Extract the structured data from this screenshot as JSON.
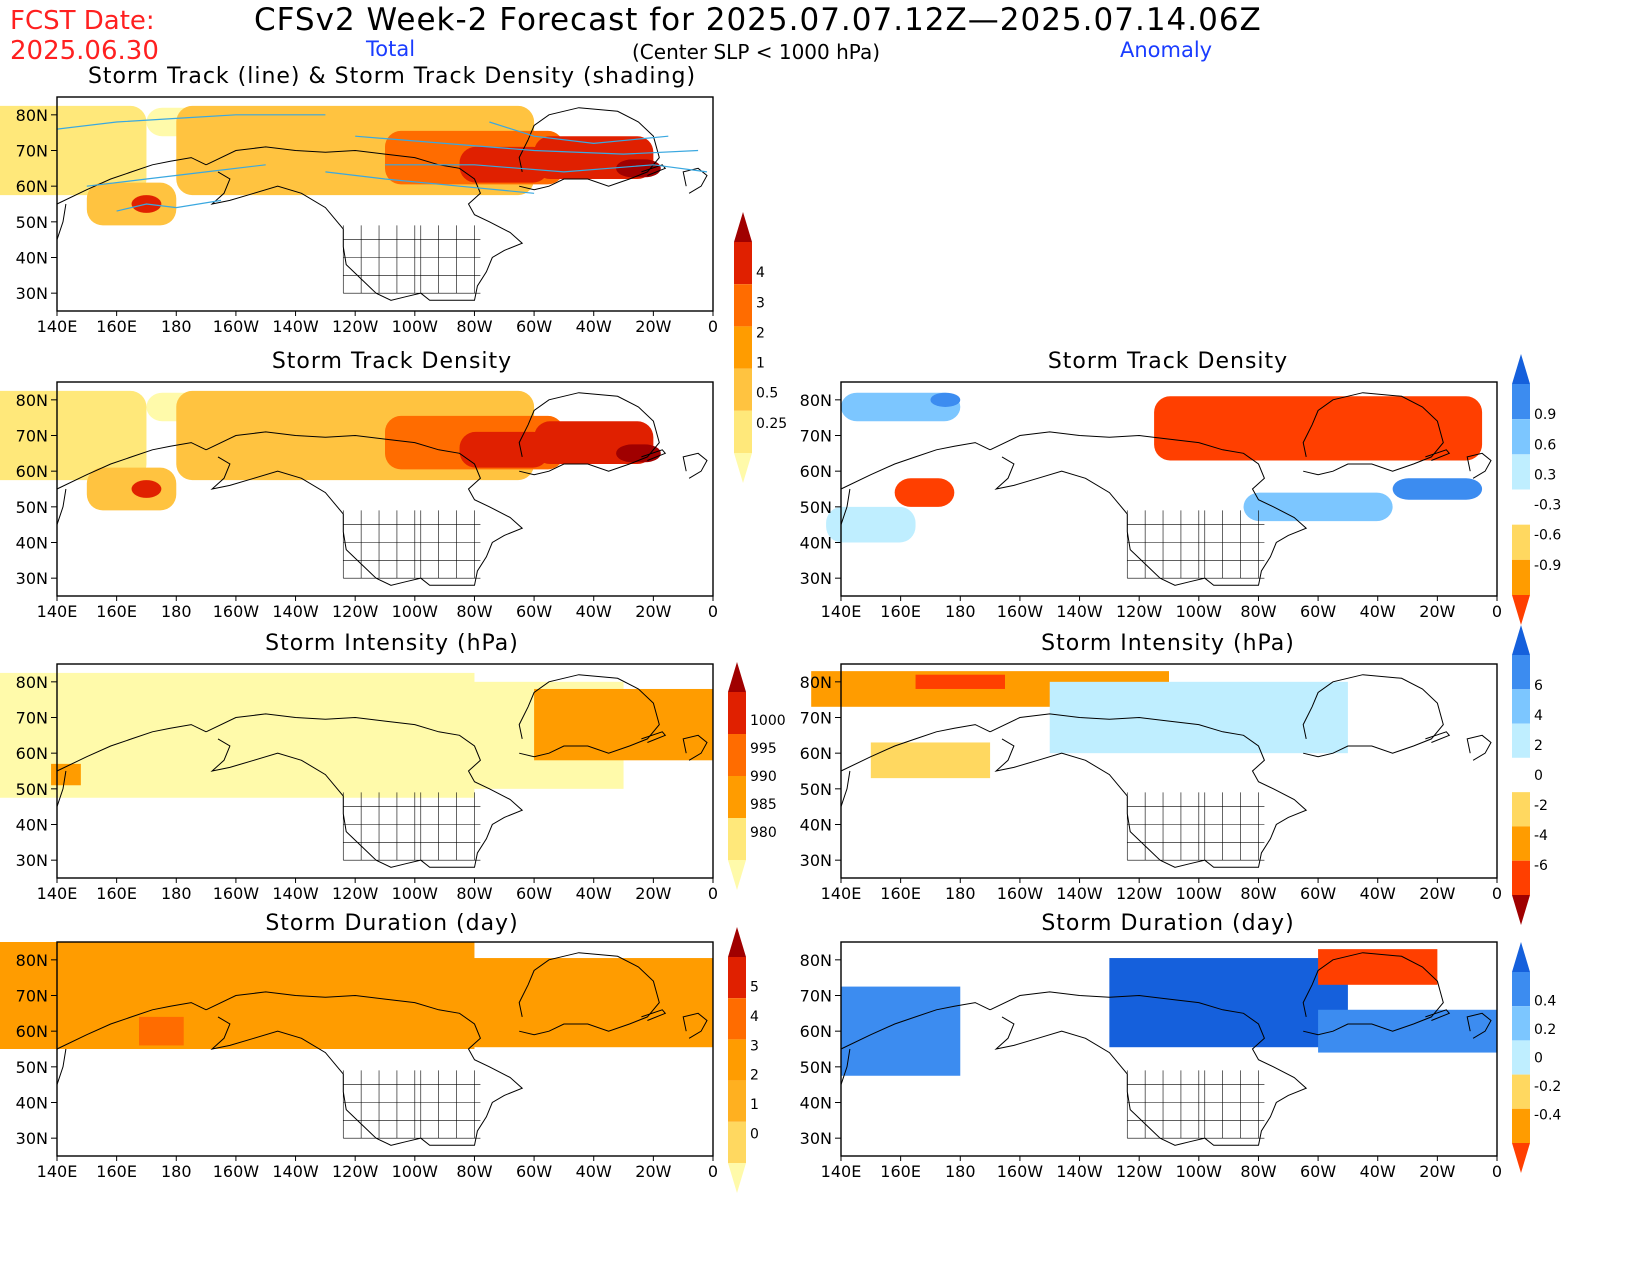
{
  "header": {
    "fcst_label": "FCST Date:",
    "fcst_date": "2025.06.30",
    "title": "CFSv2 Week-2 Forecast for 2025.07.07.12Z—2025.07.14.06Z",
    "total_label": "Total",
    "criterion": "(Center SLP < 1000 hPa)",
    "anomaly_label": "Anomaly"
  },
  "axes": {
    "lon_labels": [
      "140E",
      "160E",
      "180",
      "160W",
      "140W",
      "120W",
      "100W",
      "80W",
      "60W",
      "40W",
      "20W",
      "0"
    ],
    "lat_labels": [
      "80N",
      "70N",
      "60N",
      "50N",
      "40N",
      "30N"
    ]
  },
  "panels": [
    {
      "id": "track-total",
      "title": "Storm Track (line) & Storm Track Density (shading)",
      "field": "track_density_total"
    },
    {
      "id": "density-total",
      "title": "Storm Track Density",
      "field": "track_density_total"
    },
    {
      "id": "density-anomaly",
      "title": "Storm Track Density",
      "field": "track_density_anomaly"
    },
    {
      "id": "intensity-total",
      "title": "Storm Intensity (hPa)",
      "field": "intensity_total"
    },
    {
      "id": "intensity-anomaly",
      "title": "Storm Intensity (hPa)",
      "field": "intensity_anomaly"
    },
    {
      "id": "duration-total",
      "title": "Storm Duration (day)",
      "field": "duration_total"
    },
    {
      "id": "duration-anomaly",
      "title": "Storm Duration (day)",
      "field": "duration_anomaly"
    }
  ],
  "colorbars": [
    {
      "id": "cb-density-total",
      "labels": [
        "4",
        "3",
        "2",
        "1",
        "0.5",
        "0.25"
      ],
      "colors": [
        "#fffaaa",
        "#ffe87a",
        "#ffc340",
        "#ff9c00",
        "#ff6c00",
        "#e02000",
        "#a00000"
      ]
    },
    {
      "id": "cb-density-anom",
      "labels": [
        "0.9",
        "0.6",
        "0.3",
        "-0.3",
        "-0.6",
        "-0.9"
      ],
      "colors": [
        "#ff3f00",
        "#ff9c00",
        "#ffd860",
        "#ffffff",
        "#bfeeff",
        "#7cc6ff",
        "#3c8cf0",
        "#1560dc"
      ]
    },
    {
      "id": "cb-int-total",
      "labels": [
        "1000",
        "995",
        "990",
        "985",
        "980"
      ],
      "colors": [
        "#fffaaa",
        "#ffe87a",
        "#ff9c00",
        "#ff6c00",
        "#e02000",
        "#a00000"
      ]
    },
    {
      "id": "cb-int-anom",
      "labels": [
        "6",
        "4",
        "2",
        "0",
        "-2",
        "-4",
        "-6"
      ],
      "colors": [
        "#a00000",
        "#ff3f00",
        "#ff9c00",
        "#ffd860",
        "#ffffff",
        "#bfeeff",
        "#7cc6ff",
        "#3c8cf0",
        "#1560dc"
      ]
    },
    {
      "id": "cb-dur-total",
      "labels": [
        "5",
        "4",
        "3",
        "2",
        "1",
        "0"
      ],
      "colors": [
        "#fffaaa",
        "#ffd860",
        "#ffb020",
        "#ff9c00",
        "#ff6c00",
        "#e02000",
        "#a00000"
      ]
    },
    {
      "id": "cb-dur-anom",
      "labels": [
        "0.4",
        "0.2",
        "0",
        "-0.2",
        "-0.4"
      ],
      "colors": [
        "#ff3f00",
        "#ff9c00",
        "#ffd860",
        "#bfeeff",
        "#7cc6ff",
        "#3c8cf0",
        "#1560dc"
      ]
    }
  ],
  "fields": {
    "track_density_total": [
      {
        "lon": 140,
        "lat": 70,
        "w": 60,
        "h": 25,
        "c": "#ffe87a"
      },
      {
        "lon": 165,
        "lat": 55,
        "w": 30,
        "h": 12,
        "c": "#ffc340"
      },
      {
        "lon": 170,
        "lat": 55,
        "w": 10,
        "h": 5,
        "c": "#e02000"
      },
      {
        "lon": 200,
        "lat": 78,
        "w": 60,
        "h": 8,
        "c": "#fffaaa"
      },
      {
        "lon": 240,
        "lat": 70,
        "w": 120,
        "h": 25,
        "c": "#ffc340"
      },
      {
        "lon": 280,
        "lat": 68,
        "w": 60,
        "h": 15,
        "c": "#ff6c00"
      },
      {
        "lon": 290,
        "lat": 66,
        "w": 30,
        "h": 10,
        "c": "#e02000"
      },
      {
        "lon": 320,
        "lat": 68,
        "w": 40,
        "h": 12,
        "c": "#e02000"
      },
      {
        "lon": 335,
        "lat": 65,
        "w": 15,
        "h": 5,
        "c": "#a00000"
      }
    ],
    "track_density_anomaly": [
      {
        "lon": 160,
        "lat": 78,
        "w": 40,
        "h": 8,
        "c": "#7cc6ff"
      },
      {
        "lon": 175,
        "lat": 80,
        "w": 10,
        "h": 4,
        "c": "#3c8cf0"
      },
      {
        "lon": 168,
        "lat": 54,
        "w": 20,
        "h": 8,
        "c": "#ff3f00"
      },
      {
        "lon": 150,
        "lat": 45,
        "w": 30,
        "h": 10,
        "c": "#bfeeff"
      },
      {
        "lon": 300,
        "lat": 72,
        "w": 110,
        "h": 18,
        "c": "#ff3f00"
      },
      {
        "lon": 300,
        "lat": 50,
        "w": 50,
        "h": 8,
        "c": "#7cc6ff"
      },
      {
        "lon": 340,
        "lat": 55,
        "w": 30,
        "h": 6,
        "c": "#3c8cf0"
      }
    ],
    "intensity_total": [
      {
        "lon": 200,
        "lat": 65,
        "w": 160,
        "h": 35,
        "c": "#fffaaa"
      },
      {
        "lon": 290,
        "lat": 65,
        "w": 80,
        "h": 30,
        "c": "#fffaaa"
      },
      {
        "lon": 330,
        "lat": 68,
        "w": 60,
        "h": 20,
        "c": "#ff9c00"
      },
      {
        "lon": 143,
        "lat": 54,
        "w": 10,
        "h": 6,
        "c": "#ff9c00"
      }
    ],
    "intensity_anomaly": [
      {
        "lon": 190,
        "lat": 78,
        "w": 120,
        "h": 10,
        "c": "#ff9c00"
      },
      {
        "lon": 180,
        "lat": 80,
        "w": 30,
        "h": 4,
        "c": "#ff3f00"
      },
      {
        "lon": 260,
        "lat": 70,
        "w": 100,
        "h": 20,
        "c": "#bfeeff"
      },
      {
        "lon": 170,
        "lat": 58,
        "w": 40,
        "h": 10,
        "c": "#ffd860"
      }
    ],
    "duration_total": [
      {
        "lon": 195,
        "lat": 70,
        "w": 170,
        "h": 30,
        "c": "#ff9c00"
      },
      {
        "lon": 300,
        "lat": 68,
        "w": 120,
        "h": 25,
        "c": "#ff9c00"
      },
      {
        "lon": 175,
        "lat": 60,
        "w": 15,
        "h": 8,
        "c": "#ff6c00"
      }
    ],
    "duration_anomaly": [
      {
        "lon": 160,
        "lat": 60,
        "w": 40,
        "h": 25,
        "c": "#3c8cf0"
      },
      {
        "lon": 270,
        "lat": 68,
        "w": 80,
        "h": 25,
        "c": "#1560dc"
      },
      {
        "lon": 320,
        "lat": 78,
        "w": 40,
        "h": 10,
        "c": "#ff3f00"
      },
      {
        "lon": 330,
        "lat": 60,
        "w": 60,
        "h": 12,
        "c": "#3c8cf0"
      }
    ]
  }
}
